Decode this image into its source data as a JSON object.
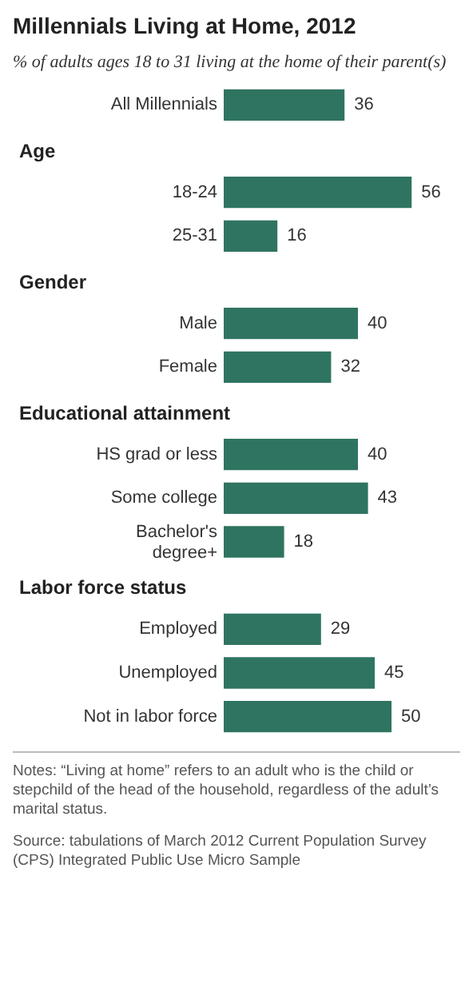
{
  "chart_data": {
    "type": "bar",
    "orientation": "horizontal",
    "title": "Millennials Living at Home, 2012",
    "subtitle": "% of adults ages 18 to 31 living at the home of their parent(s)",
    "categories": [
      "All Millennials",
      null,
      "18-24",
      "25-31",
      null,
      "Male",
      "Female",
      null,
      "HS grad or less",
      "Some college",
      "Bachelor's degree+",
      null,
      "Employed",
      "Unemployed",
      "Not in labor force"
    ],
    "values": [
      36,
      null,
      56,
      16,
      null,
      40,
      32,
      null,
      40,
      43,
      18,
      null,
      29,
      45,
      50
    ],
    "color": "#2f7461",
    "data_labels": true,
    "legend": false,
    "tick_labels": false,
    "annotations": [
      "Age",
      "Gender",
      "Educational attainment",
      "Labor force status",
      "Notes: “Living at home” refers to an adult who is the child or stepchild of the head of the household, regardless of the adult’s marital status.",
      "Source: tabulations of March 2012 Current Population Survey (CPS) Integrated Public Use Micro Sample"
    ]
  }
}
